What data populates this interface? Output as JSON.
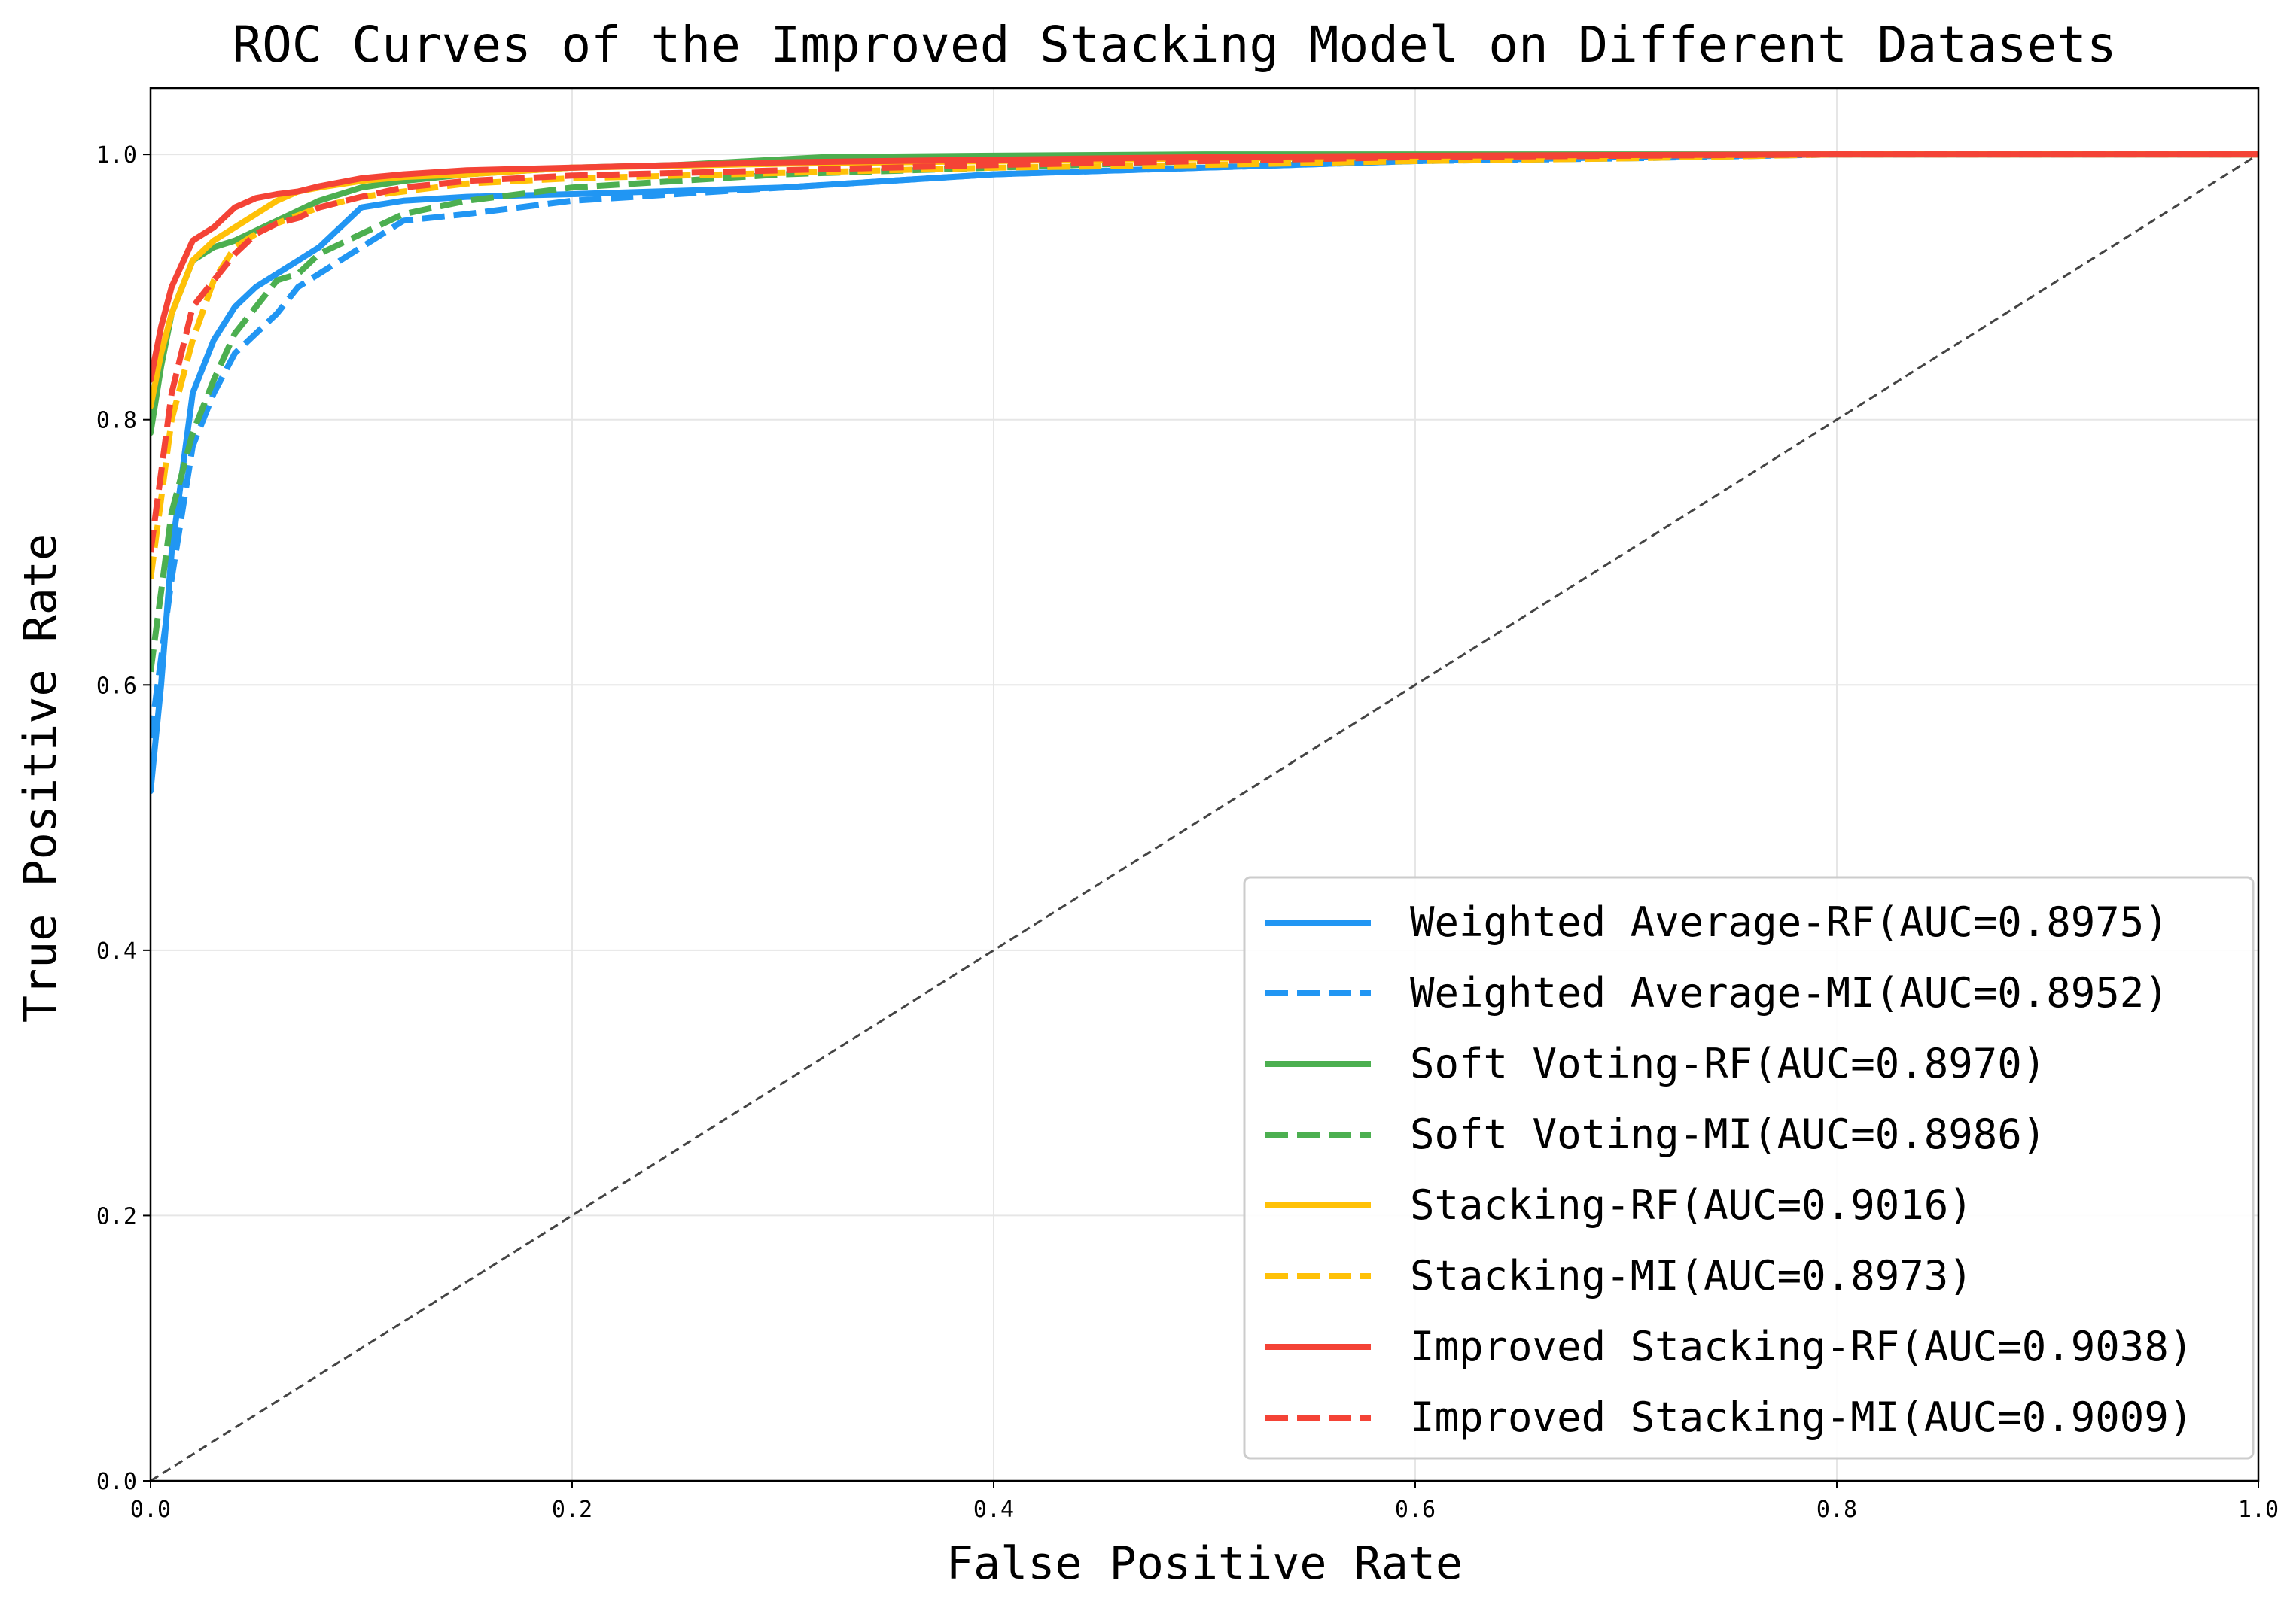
{
  "chart_data": {
    "type": "line",
    "title": "ROC Curves of the Improved Stacking Model on Different Datasets",
    "xlabel": "False Positive Rate",
    "ylabel": "True Positive Rate",
    "xlim": [
      0,
      1
    ],
    "ylim": [
      0,
      1.05
    ],
    "xticks": [
      "0.0",
      "0.2",
      "0.4",
      "0.6",
      "0.8",
      "1.0"
    ],
    "yticks": [
      "0.0",
      "0.2",
      "0.4",
      "0.6",
      "0.8",
      "1.0"
    ],
    "grid": true,
    "legend_position": "lower-right",
    "reference_line": {
      "x": [
        0,
        1
      ],
      "y": [
        0,
        1
      ],
      "color": "#444444",
      "style": "dashed"
    },
    "series": [
      {
        "name": "Weighted Average-RF(AUC=0.8975)",
        "color": "#2196F3",
        "style": "solid",
        "x": [
          0,
          0.005,
          0.01,
          0.02,
          0.03,
          0.04,
          0.05,
          0.06,
          0.07,
          0.08,
          0.09,
          0.1,
          0.12,
          0.15,
          0.2,
          0.3,
          0.4,
          0.5,
          0.6,
          0.7,
          0.8,
          1.0
        ],
        "y": [
          0.52,
          0.6,
          0.7,
          0.82,
          0.86,
          0.885,
          0.9,
          0.91,
          0.92,
          0.93,
          0.945,
          0.96,
          0.965,
          0.968,
          0.97,
          0.975,
          0.985,
          0.99,
          0.995,
          0.998,
          1.0,
          1.0
        ]
      },
      {
        "name": "Weighted Average-MI(AUC=0.8952)",
        "color": "#2196F3",
        "style": "dashed",
        "x": [
          0,
          0.005,
          0.01,
          0.02,
          0.03,
          0.04,
          0.05,
          0.06,
          0.07,
          0.08,
          0.1,
          0.12,
          0.15,
          0.2,
          0.3,
          0.4,
          0.5,
          0.6,
          0.7,
          0.8,
          1.0
        ],
        "y": [
          0.56,
          0.62,
          0.68,
          0.78,
          0.82,
          0.85,
          0.865,
          0.88,
          0.9,
          0.91,
          0.93,
          0.95,
          0.955,
          0.965,
          0.975,
          0.985,
          0.99,
          0.995,
          0.997,
          1.0,
          1.0
        ]
      },
      {
        "name": "Soft Voting-RF(AUC=0.8970)",
        "color": "#4CAF50",
        "style": "solid",
        "x": [
          0,
          0.005,
          0.01,
          0.02,
          0.03,
          0.04,
          0.06,
          0.08,
          0.1,
          0.12,
          0.15,
          0.2,
          0.25,
          0.32,
          0.4,
          0.5,
          0.6,
          0.8,
          1.0
        ],
        "y": [
          0.79,
          0.84,
          0.88,
          0.92,
          0.93,
          0.935,
          0.95,
          0.965,
          0.975,
          0.98,
          0.985,
          0.99,
          0.992,
          0.998,
          0.999,
          1.0,
          1.0,
          1.0,
          1.0
        ]
      },
      {
        "name": "Soft Voting-MI(AUC=0.8986)",
        "color": "#4CAF50",
        "style": "dashed",
        "x": [
          0,
          0.005,
          0.01,
          0.02,
          0.03,
          0.04,
          0.05,
          0.06,
          0.07,
          0.08,
          0.1,
          0.12,
          0.15,
          0.2,
          0.3,
          0.4,
          0.5,
          0.6,
          0.8,
          1.0
        ],
        "y": [
          0.61,
          0.67,
          0.73,
          0.79,
          0.83,
          0.865,
          0.885,
          0.905,
          0.91,
          0.925,
          0.94,
          0.955,
          0.965,
          0.975,
          0.985,
          0.99,
          0.995,
          0.998,
          1.0,
          1.0
        ]
      },
      {
        "name": "Stacking-RF(AUC=0.9016)",
        "color": "#FFC107",
        "style": "solid",
        "x": [
          0,
          0.005,
          0.01,
          0.02,
          0.03,
          0.04,
          0.05,
          0.06,
          0.07,
          0.08,
          0.1,
          0.12,
          0.15,
          0.2,
          0.3,
          0.4,
          0.5,
          0.6,
          0.8,
          1.0
        ],
        "y": [
          0.81,
          0.85,
          0.88,
          0.92,
          0.935,
          0.945,
          0.955,
          0.965,
          0.972,
          0.975,
          0.98,
          0.983,
          0.985,
          0.99,
          0.993,
          0.995,
          0.997,
          0.998,
          1.0,
          1.0
        ]
      },
      {
        "name": "Stacking-MI(AUC=0.8973)",
        "color": "#FFC107",
        "style": "dashed",
        "x": [
          0,
          0.005,
          0.01,
          0.02,
          0.03,
          0.04,
          0.05,
          0.06,
          0.08,
          0.1,
          0.12,
          0.15,
          0.2,
          0.3,
          0.4,
          0.5,
          0.6,
          0.7,
          0.8,
          1.0
        ],
        "y": [
          0.68,
          0.74,
          0.8,
          0.86,
          0.905,
          0.93,
          0.94,
          0.948,
          0.96,
          0.968,
          0.972,
          0.978,
          0.982,
          0.986,
          0.99,
          0.992,
          0.995,
          0.997,
          1.0,
          1.0
        ]
      },
      {
        "name": "Improved Stacking-RF(AUC=0.9038)",
        "color": "#F44336",
        "style": "solid",
        "x": [
          0,
          0.005,
          0.01,
          0.02,
          0.03,
          0.04,
          0.05,
          0.06,
          0.07,
          0.08,
          0.1,
          0.12,
          0.15,
          0.2,
          0.3,
          0.4,
          0.5,
          0.6,
          0.8,
          1.0
        ],
        "y": [
          0.83,
          0.87,
          0.9,
          0.935,
          0.945,
          0.96,
          0.967,
          0.97,
          0.972,
          0.976,
          0.982,
          0.985,
          0.988,
          0.99,
          0.994,
          0.996,
          0.998,
          0.999,
          1.0,
          1.0
        ]
      },
      {
        "name": "Improved Stacking-MI(AUC=0.9009)",
        "color": "#F44336",
        "style": "dashed",
        "x": [
          0,
          0.005,
          0.01,
          0.02,
          0.03,
          0.04,
          0.05,
          0.06,
          0.07,
          0.08,
          0.1,
          0.12,
          0.15,
          0.2,
          0.3,
          0.4,
          0.5,
          0.6,
          0.8,
          1.0
        ],
        "y": [
          0.7,
          0.76,
          0.82,
          0.885,
          0.905,
          0.925,
          0.94,
          0.948,
          0.952,
          0.96,
          0.968,
          0.975,
          0.98,
          0.984,
          0.988,
          0.992,
          0.995,
          0.998,
          1.0,
          1.0
        ]
      }
    ]
  }
}
